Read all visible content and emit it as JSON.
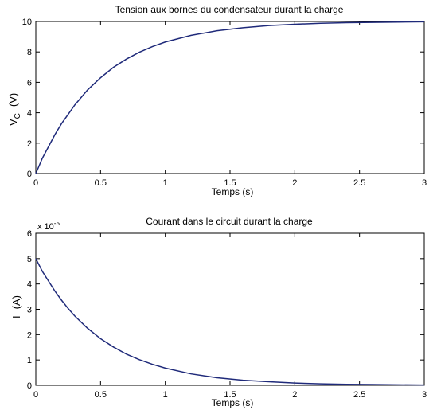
{
  "chart_data": [
    {
      "type": "line",
      "title": "Tension aux bornes du condensateur durant la charge",
      "xlabel": "Temps (s)",
      "ylabel": "V",
      "ylabel_sub": "C",
      "ylabel_unit": "(V)",
      "xlim": [
        0,
        3
      ],
      "ylim": [
        0,
        10
      ],
      "x_ticks": [
        "0",
        "0.5",
        "1",
        "1.5",
        "2",
        "2.5",
        "3"
      ],
      "y_ticks": [
        "0",
        "2",
        "4",
        "6",
        "8",
        "10"
      ],
      "exponent_label": "",
      "line_color": "#1f2a7a",
      "series": [
        {
          "x": [
            0,
            0.05,
            0.1,
            0.15,
            0.2,
            0.25,
            0.3,
            0.4,
            0.5,
            0.6,
            0.7,
            0.8,
            0.9,
            1.0,
            1.2,
            1.4,
            1.6,
            1.8,
            2.0,
            2.2,
            2.4,
            2.6,
            2.8,
            3.0
          ],
          "values": [
            0,
            1.0,
            1.8,
            2.6,
            3.3,
            3.9,
            4.5,
            5.5,
            6.3,
            6.99,
            7.53,
            7.98,
            8.35,
            8.65,
            9.09,
            9.39,
            9.59,
            9.73,
            9.82,
            9.88,
            9.92,
            9.94,
            9.96,
            9.98
          ]
        }
      ]
    },
    {
      "type": "line",
      "title": "Courant dans le circuit durant la charge",
      "xlabel": "Temps (s)",
      "ylabel": "I",
      "ylabel_sub": "",
      "ylabel_unit": "(A)",
      "xlim": [
        0,
        3
      ],
      "ylim": [
        0,
        6
      ],
      "x_ticks": [
        "0",
        "0.5",
        "1",
        "1.5",
        "2",
        "2.5",
        "3"
      ],
      "y_ticks": [
        "0",
        "1",
        "2",
        "3",
        "4",
        "5",
        "6"
      ],
      "exponent_label": "x 10",
      "exponent_power": "-5",
      "line_color": "#1f2a7a",
      "series": [
        {
          "x": [
            0,
            0.05,
            0.1,
            0.15,
            0.2,
            0.25,
            0.3,
            0.4,
            0.5,
            0.6,
            0.7,
            0.8,
            0.9,
            1.0,
            1.2,
            1.4,
            1.6,
            1.8,
            2.0,
            2.2,
            2.4,
            2.6,
            2.8,
            3.0
          ],
          "values": [
            5.0,
            4.5,
            4.1,
            3.7,
            3.35,
            3.03,
            2.74,
            2.25,
            1.84,
            1.51,
            1.23,
            1.01,
            0.83,
            0.68,
            0.45,
            0.3,
            0.2,
            0.14,
            0.09,
            0.06,
            0.04,
            0.03,
            0.02,
            0.01
          ]
        }
      ]
    }
  ]
}
